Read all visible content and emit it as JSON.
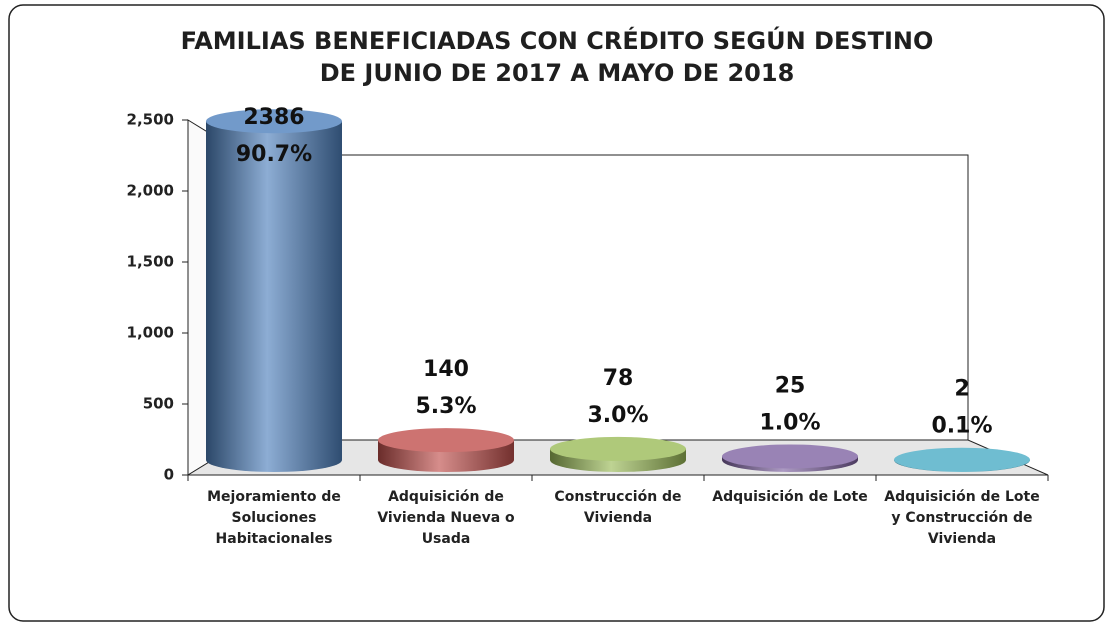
{
  "chart_data": {
    "type": "bar3d",
    "title": "FAMILIAS BENEFICIADAS CON CRÉDITO SEGÚN DESTINO",
    "subtitle": "DE JUNIO DE 2017 A MAYO DE 2018",
    "categories": [
      "Mejoramiento de Soluciones Habitacionales",
      "Adquisición de Vivienda Nueva o Usada",
      "Construcción de Vivienda",
      "Adquisición de Lote",
      "Adquisición de Lote y Construcción de Vivienda"
    ],
    "values": [
      2386,
      140,
      78,
      25,
      2
    ],
    "percents": [
      90.7,
      5.3,
      3.0,
      1.0,
      0.1
    ],
    "percent_labels": [
      "90.7%",
      "5.3%",
      "3.0%",
      "1.0%",
      "0.1%"
    ],
    "colors": [
      "#4f81bd",
      "#c0504d",
      "#9bbb59",
      "#8064a2",
      "#4bacc6"
    ],
    "ylim": [
      0,
      2500
    ],
    "yticks": [
      0,
      500,
      {
        "value": 1000,
        "label": "1,000"
      },
      {
        "value": 1500,
        "label": "1,500"
      },
      {
        "value": 2000,
        "label": "2,000"
      },
      {
        "value": 2500,
        "label": "2,500"
      }
    ]
  }
}
